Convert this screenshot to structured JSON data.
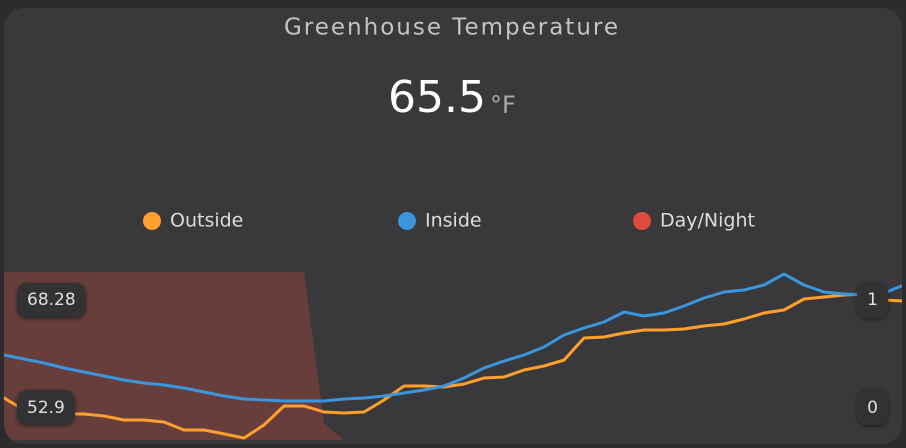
{
  "chart_data": {
    "type": "line",
    "title": "Greenhouse Temperature",
    "current_value": 65.5,
    "unit": "°F",
    "series": [
      {
        "name": "Outside",
        "color": "#ff9f2e",
        "values": [
          56.65,
          55.53,
          55.15,
          55.15,
          55.15,
          54.96,
          54.59,
          54.59,
          54.4,
          53.65,
          53.65,
          53.28,
          52.9,
          54.12,
          55.9,
          55.9,
          55.34,
          55.24,
          55.34,
          56.46,
          57.78,
          57.78,
          57.68,
          57.96,
          58.53,
          58.62,
          59.28,
          59.65,
          60.21,
          62.28,
          62.37,
          62.75,
          63.03,
          63.03,
          63.12,
          63.4,
          63.59,
          64.06,
          64.62,
          64.9,
          65.94,
          66.12,
          66.31,
          66.4,
          65.84,
          65.75
        ]
      },
      {
        "name": "Inside",
        "color": "#3a95dd",
        "values": [
          60.68,
          60.31,
          59.93,
          59.46,
          59.09,
          58.71,
          58.34,
          58.06,
          57.87,
          57.59,
          57.21,
          56.84,
          56.56,
          56.46,
          56.37,
          56.37,
          56.37,
          56.56,
          56.65,
          56.84,
          57.12,
          57.4,
          57.78,
          58.53,
          59.46,
          60.12,
          60.68,
          61.43,
          62.56,
          63.22,
          63.78,
          64.72,
          64.34,
          64.62,
          65.28,
          66.03,
          66.59,
          66.78,
          67.25,
          68.28,
          67.25,
          66.59,
          66.4,
          66.31,
          66.5,
          67.25
        ]
      },
      {
        "name": "Day/Night",
        "color": "#e04a3c",
        "axis": "y2",
        "values": [
          1,
          1,
          1,
          1,
          1,
          1,
          1,
          1,
          1,
          1,
          1,
          1,
          1,
          1,
          1,
          1,
          0.1,
          0,
          0,
          0,
          0,
          0,
          0,
          0,
          0,
          0,
          0,
          0,
          0,
          0,
          0,
          0,
          0,
          0,
          0,
          0,
          0,
          0,
          0,
          0,
          0,
          0,
          0,
          0,
          0,
          0
        ]
      }
    ],
    "ylim": [
      52.9,
      68.28
    ],
    "yticks": [
      52.9,
      68.28
    ],
    "y2lim": [
      0,
      1
    ],
    "y2ticks": [
      0,
      1
    ]
  }
}
